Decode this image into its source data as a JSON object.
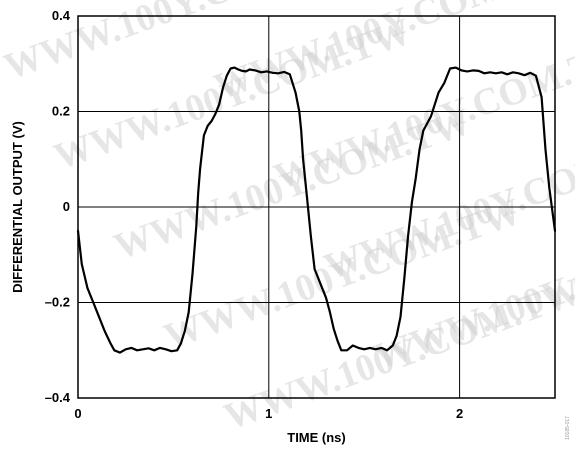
{
  "watermark": "WWW.100Y.COM.TW",
  "figure_id": "10185-017",
  "chart_data": {
    "type": "line",
    "xlabel": "TIME (ns)",
    "ylabel": "DIFFERENTIAL OUTPUT (V)",
    "xlim": [
      0,
      2.5
    ],
    "ylim": [
      -0.4,
      0.4
    ],
    "x_ticks": [
      0,
      1,
      2
    ],
    "x_tick_labels": [
      "0",
      "1",
      "2"
    ],
    "y_ticks": [
      -0.4,
      -0.2,
      0,
      0.2,
      0.4
    ],
    "y_tick_labels": [
      "–0.4",
      "–0.2",
      "0",
      "0.2",
      "0.4"
    ],
    "grid": true,
    "series": [
      {
        "x": [
          0.0,
          0.02,
          0.05,
          0.08,
          0.11,
          0.14,
          0.17,
          0.19,
          0.22,
          0.25,
          0.28,
          0.31,
          0.34,
          0.37,
          0.4,
          0.43,
          0.46,
          0.49,
          0.52,
          0.54,
          0.56,
          0.58,
          0.6,
          0.62,
          0.63,
          0.64,
          0.66,
          0.68,
          0.7,
          0.72,
          0.74,
          0.76,
          0.78,
          0.8,
          0.82,
          0.84,
          0.86,
          0.88,
          0.9,
          0.93,
          0.96,
          0.99,
          1.02,
          1.05,
          1.08,
          1.11,
          1.14,
          1.16,
          1.17,
          1.18,
          1.2,
          1.22,
          1.24,
          1.26,
          1.28,
          1.3,
          1.32,
          1.34,
          1.36,
          1.38,
          1.41,
          1.44,
          1.47,
          1.5,
          1.53,
          1.56,
          1.59,
          1.62,
          1.65,
          1.67,
          1.69,
          1.71,
          1.73,
          1.75,
          1.77,
          1.79,
          1.81,
          1.83,
          1.85,
          1.87,
          1.89,
          1.92,
          1.95,
          1.98,
          2.01,
          2.04,
          2.07,
          2.1,
          2.13,
          2.16,
          2.19,
          2.22,
          2.25,
          2.28,
          2.31,
          2.34,
          2.37,
          2.4,
          2.43,
          2.45,
          2.47,
          2.49,
          2.5
        ],
        "y": [
          -0.05,
          -0.12,
          -0.17,
          -0.2,
          -0.23,
          -0.26,
          -0.285,
          -0.3,
          -0.305,
          -0.298,
          -0.295,
          -0.3,
          -0.298,
          -0.296,
          -0.3,
          -0.295,
          -0.298,
          -0.302,
          -0.3,
          -0.285,
          -0.26,
          -0.22,
          -0.14,
          -0.04,
          0.03,
          0.08,
          0.15,
          0.17,
          0.18,
          0.195,
          0.215,
          0.25,
          0.275,
          0.29,
          0.292,
          0.288,
          0.285,
          0.284,
          0.288,
          0.286,
          0.282,
          0.284,
          0.281,
          0.28,
          0.283,
          0.278,
          0.24,
          0.2,
          0.16,
          0.1,
          0.02,
          -0.06,
          -0.13,
          -0.15,
          -0.17,
          -0.19,
          -0.22,
          -0.255,
          -0.28,
          -0.3,
          -0.3,
          -0.29,
          -0.295,
          -0.298,
          -0.295,
          -0.298,
          -0.295,
          -0.3,
          -0.29,
          -0.27,
          -0.23,
          -0.15,
          -0.06,
          0.01,
          0.06,
          0.12,
          0.16,
          0.175,
          0.19,
          0.215,
          0.24,
          0.26,
          0.29,
          0.292,
          0.286,
          0.284,
          0.286,
          0.285,
          0.28,
          0.282,
          0.28,
          0.282,
          0.278,
          0.282,
          0.28,
          0.276,
          0.281,
          0.275,
          0.23,
          0.12,
          0.04,
          -0.02,
          -0.05
        ]
      }
    ]
  }
}
